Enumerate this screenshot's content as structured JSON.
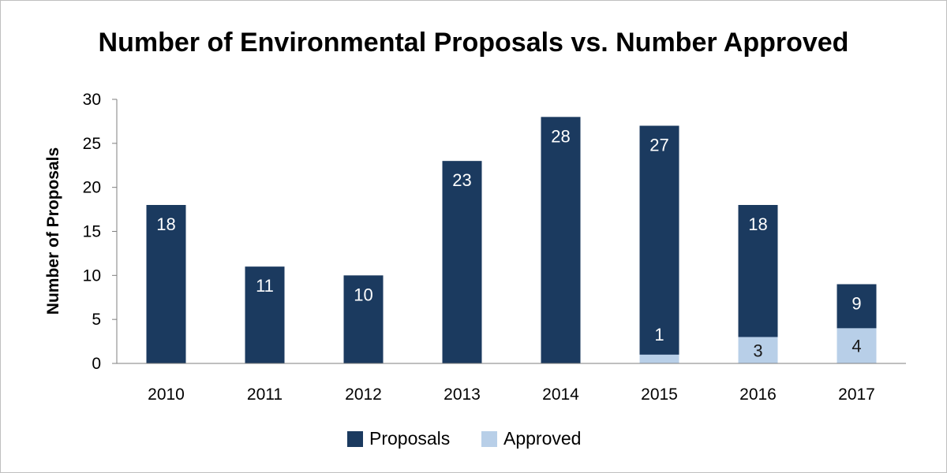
{
  "chart_data": {
    "type": "bar",
    "stacked": false,
    "overlap": true,
    "title": "Number of Environmental Proposals vs. Number Approved",
    "xlabel": "",
    "ylabel": "Number of Proposals",
    "categories": [
      "2010",
      "2011",
      "2012",
      "2013",
      "2014",
      "2015",
      "2016",
      "2017"
    ],
    "ylim": [
      0,
      30
    ],
    "yticks": [
      0,
      5,
      10,
      15,
      20,
      25,
      30
    ],
    "grid": false,
    "legend_position": "bottom",
    "series": [
      {
        "name": "Proposals",
        "color": "#1b3a5f",
        "label_color": "#ffffff",
        "values": [
          18,
          11,
          10,
          23,
          28,
          27,
          18,
          9
        ],
        "data_labels": [
          "18",
          "11",
          "10",
          "23",
          "28",
          "27",
          "18",
          "9"
        ]
      },
      {
        "name": "Approved",
        "color": "#b8cfe8",
        "label_color": "#1a1a1a",
        "values": [
          0,
          0,
          0,
          0,
          0,
          1,
          3,
          4
        ],
        "data_labels": [
          "",
          "",
          "",
          "",
          "",
          "1",
          "3",
          "4"
        ]
      }
    ]
  }
}
